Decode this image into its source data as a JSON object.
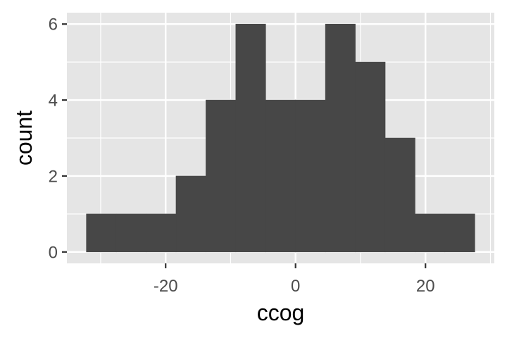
{
  "chart_data": {
    "type": "bar",
    "xlabel": "ccog",
    "ylabel": "count",
    "bins": [
      {
        "x0": -32.2,
        "x1": -27.6,
        "count": 1
      },
      {
        "x0": -27.6,
        "x1": -23.0,
        "count": 1
      },
      {
        "x0": -23.0,
        "x1": -18.4,
        "count": 1
      },
      {
        "x0": -18.4,
        "x1": -13.8,
        "count": 2
      },
      {
        "x0": -13.8,
        "x1": -9.2,
        "count": 4
      },
      {
        "x0": -9.2,
        "x1": -4.6,
        "count": 6
      },
      {
        "x0": -4.6,
        "x1": 0.0,
        "count": 4
      },
      {
        "x0": 0.0,
        "x1": 4.6,
        "count": 4
      },
      {
        "x0": 4.6,
        "x1": 9.2,
        "count": 6
      },
      {
        "x0": 9.2,
        "x1": 13.8,
        "count": 5
      },
      {
        "x0": 13.8,
        "x1": 18.4,
        "count": 3
      },
      {
        "x0": 18.4,
        "x1": 23.0,
        "count": 1
      },
      {
        "x0": 23.0,
        "x1": 27.6,
        "count": 1
      }
    ],
    "xlim": [
      -35.2,
      30.6
    ],
    "ylim": [
      -0.3,
      6.3
    ],
    "x_ticks": [
      -20,
      0,
      20
    ],
    "x_tick_labels": [
      "-20",
      "0",
      "20"
    ],
    "y_ticks": [
      0,
      2,
      4,
      6
    ],
    "y_tick_labels": [
      "0",
      "2",
      "4",
      "6"
    ],
    "grid": true,
    "colors": {
      "panel": "#e5e5e5",
      "grid": "#ffffff",
      "bar": "#474747",
      "tick": "#333333"
    }
  }
}
